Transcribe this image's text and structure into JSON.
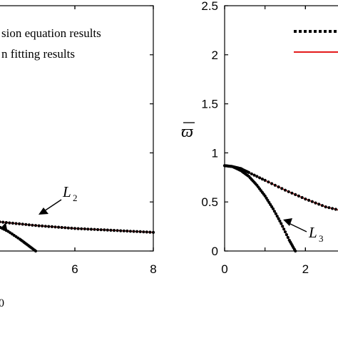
{
  "chart_data": [
    {
      "type": "line",
      "panel": "left",
      "xlim": [
        4,
        8
      ],
      "ylim": [
        0,
        2.5
      ],
      "x_ticks": [
        6,
        8
      ],
      "x_tick_labels": [
        "6",
        "8"
      ],
      "xlabel_fragment": "0",
      "grid": false,
      "legend": {
        "placement": "top-left",
        "entries": [
          "sion equation results",
          "n fitting results"
        ]
      },
      "annotations": [
        {
          "label": "L",
          "subscript": "2",
          "arrow_to": [
            4.6,
            0.27
          ]
        }
      ],
      "series": [
        {
          "curve": "L2",
          "x": [
            4.0,
            4.5,
            5.0,
            5.5,
            6.0,
            6.5,
            7.0,
            7.5,
            8.0
          ],
          "y": [
            0.3,
            0.28,
            0.26,
            0.245,
            0.23,
            0.22,
            0.21,
            0.2,
            0.19
          ]
        },
        {
          "curve": "L3",
          "x": [
            4.0,
            4.3,
            4.6,
            4.8,
            5.0
          ],
          "y": [
            0.26,
            0.2,
            0.12,
            0.06,
            0.0
          ]
        }
      ]
    },
    {
      "type": "line",
      "panel": "right",
      "xlim": [
        0,
        3
      ],
      "ylim": [
        0,
        2.5
      ],
      "y_ticks": [
        0,
        0.5,
        1,
        1.5,
        2,
        2.5
      ],
      "y_tick_labels": [
        "0",
        "0.5",
        "1",
        "1.5",
        "2",
        "2.5"
      ],
      "x_ticks": [
        0,
        2
      ],
      "x_tick_labels": [
        "0",
        "2"
      ],
      "ylabel": "ϖ",
      "grid": false,
      "legend": {
        "placement": "top-right",
        "entries": [
          "",
          ""
        ]
      },
      "annotations": [
        {
          "label": "L",
          "subscript": "3",
          "arrow_to": [
            1.35,
            0.25
          ]
        }
      ],
      "series": [
        {
          "curve": "upper",
          "x": [
            0,
            0.2,
            0.4,
            0.6,
            1.0,
            1.5,
            2.0,
            2.5,
            3.0
          ],
          "y": [
            0.87,
            0.86,
            0.84,
            0.8,
            0.72,
            0.62,
            0.53,
            0.45,
            0.4
          ]
        },
        {
          "curve": "L3",
          "x": [
            0,
            0.2,
            0.4,
            0.6,
            0.8,
            1.0,
            1.2,
            1.4,
            1.6,
            1.75
          ],
          "y": [
            0.87,
            0.86,
            0.82,
            0.76,
            0.67,
            0.56,
            0.43,
            0.28,
            0.11,
            0.0
          ]
        }
      ],
      "colors": {
        "dotted": "#000000",
        "fit": "#e41a1c"
      }
    }
  ]
}
